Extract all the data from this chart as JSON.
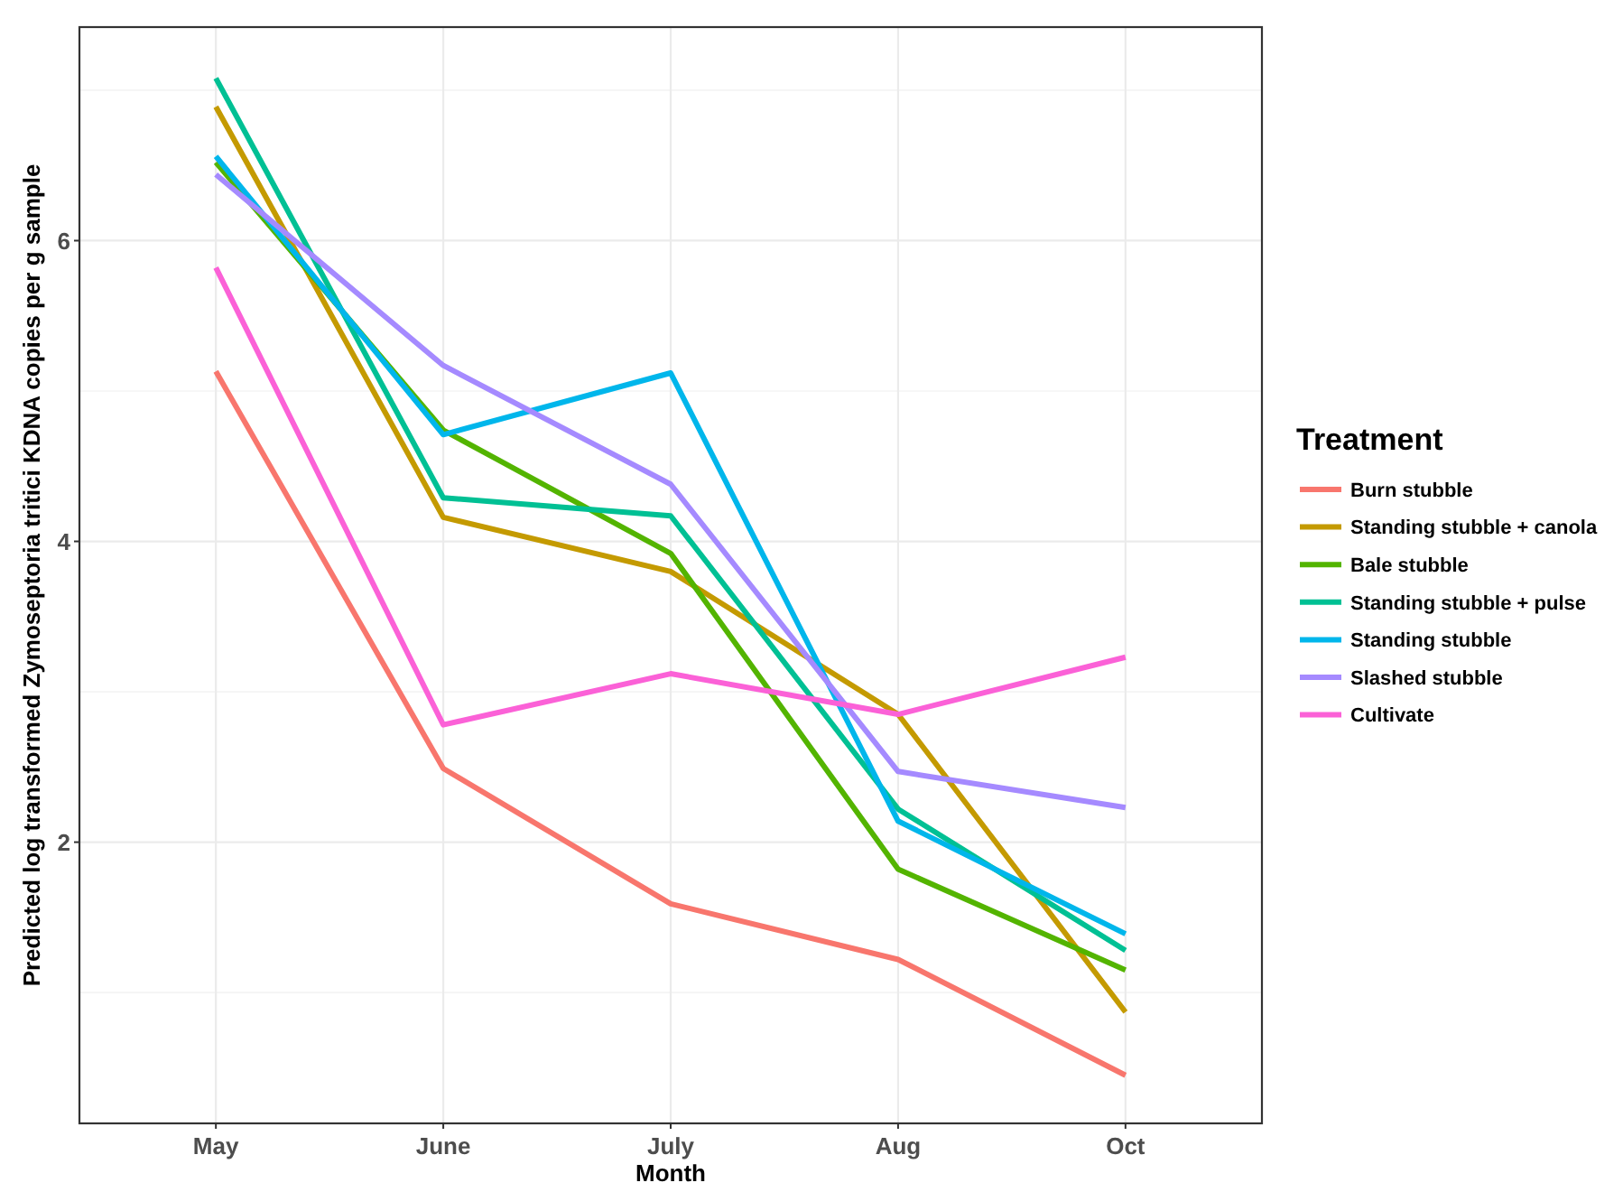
{
  "chart_data": {
    "type": "line",
    "xlabel": "Month",
    "ylabel": "Predicted log transformed Zymoseptoria tritici KDNA copies per g sample",
    "legend_title": "Treatment",
    "categories": [
      "May",
      "June",
      "July",
      "Aug",
      "Oct"
    ],
    "ylim": [
      0.13,
      7.42
    ],
    "yticks": [
      2,
      4,
      6
    ],
    "grid": true,
    "legend": "right",
    "marker": "none",
    "line_style": "solid",
    "series": [
      {
        "name": "Burn stubble",
        "color": "#f8766d",
        "values": [
          5.13,
          2.49,
          1.59,
          1.22,
          0.45
        ]
      },
      {
        "name": "Standing stubble + canola",
        "color": "#c49a00",
        "values": [
          6.89,
          4.16,
          3.8,
          2.85,
          0.87
        ]
      },
      {
        "name": "Bale stubble",
        "color": "#53b400",
        "values": [
          6.52,
          4.74,
          3.92,
          1.82,
          1.15
        ]
      },
      {
        "name": "Standing stubble + pulse",
        "color": "#00c094",
        "values": [
          7.08,
          4.29,
          4.17,
          2.22,
          1.28
        ]
      },
      {
        "name": "Standing stubble",
        "color": "#00b6eb",
        "values": [
          6.56,
          4.71,
          5.12,
          2.14,
          1.39
        ]
      },
      {
        "name": "Slashed stubble",
        "color": "#a58aff",
        "values": [
          6.44,
          5.17,
          4.38,
          2.47,
          2.23
        ]
      },
      {
        "name": "Cultivate",
        "color": "#fb61d7",
        "values": [
          5.82,
          2.78,
          3.12,
          2.85,
          3.23
        ]
      }
    ]
  }
}
